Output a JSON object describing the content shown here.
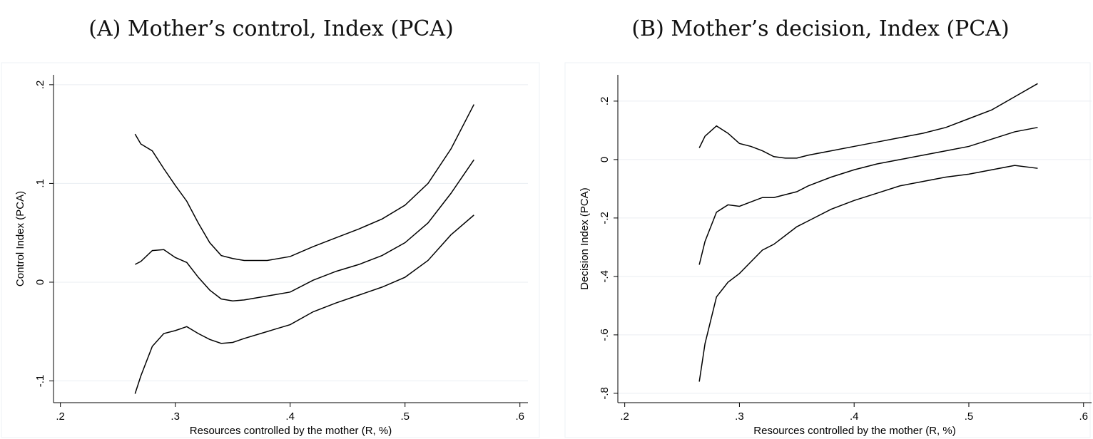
{
  "chart_data": [
    {
      "type": "line",
      "title": "(A) Mother’s control, Index (PCA)",
      "x_label": "Resources controlled by the mother (R, %)",
      "y_label": "Control Index (PCA)",
      "x": [
        0.265,
        0.27,
        0.28,
        0.29,
        0.3,
        0.31,
        0.32,
        0.33,
        0.34,
        0.35,
        0.36,
        0.38,
        0.4,
        0.42,
        0.44,
        0.46,
        0.48,
        0.5,
        0.52,
        0.54,
        0.56
      ],
      "series": [
        {
          "color": "#000000",
          "values": [
            0.15,
            0.14,
            0.133,
            0.115,
            0.098,
            0.082,
            0.06,
            0.04,
            0.027,
            0.024,
            0.022,
            0.022,
            0.026,
            0.036,
            0.045,
            0.054,
            0.064,
            0.078,
            0.1,
            0.135,
            0.18
          ]
        },
        {
          "color": "#000000",
          "values": [
            0.018,
            0.021,
            0.032,
            0.033,
            0.025,
            0.02,
            0.005,
            -0.008,
            -0.017,
            -0.019,
            -0.018,
            -0.014,
            -0.01,
            0.002,
            0.011,
            0.018,
            0.027,
            0.04,
            0.06,
            0.09,
            0.124
          ]
        },
        {
          "color": "#000000",
          "values": [
            -0.113,
            -0.095,
            -0.065,
            -0.052,
            -0.049,
            -0.045,
            -0.052,
            -0.058,
            -0.062,
            -0.061,
            -0.057,
            -0.05,
            -0.043,
            -0.03,
            -0.021,
            -0.013,
            -0.005,
            0.005,
            0.022,
            0.048,
            0.068
          ]
        }
      ],
      "xlim": [
        0.194,
        0.607
      ],
      "ylim": [
        -0.122,
        0.21
      ],
      "xticks": [
        {
          "value": 0.2,
          "label": ".2"
        },
        {
          "value": 0.3,
          "label": ".3"
        },
        {
          "value": 0.4,
          "label": ".4"
        },
        {
          "value": 0.5,
          "label": ".5"
        },
        {
          "value": 0.6,
          "label": ".6"
        }
      ],
      "yticks": [
        {
          "value": -0.1,
          "label": "-.1"
        },
        0,
        {
          "value": 0.1,
          "label": ".1"
        },
        {
          "value": 0.2,
          "label": ".2"
        }
      ],
      "grid": true
    },
    {
      "type": "line",
      "title": "(B) Mother’s decision, Index (PCA)",
      "x_label": "Resources controlled by the mother (R, %)",
      "y_label": "Decision Index (PCA)",
      "x": [
        0.265,
        0.27,
        0.28,
        0.29,
        0.3,
        0.31,
        0.32,
        0.33,
        0.34,
        0.35,
        0.36,
        0.38,
        0.4,
        0.42,
        0.44,
        0.46,
        0.48,
        0.5,
        0.52,
        0.54,
        0.56
      ],
      "series": [
        {
          "color": "#000000",
          "values": [
            0.04,
            0.08,
            0.115,
            0.09,
            0.055,
            0.045,
            0.03,
            0.01,
            0.005,
            0.005,
            0.015,
            0.03,
            0.045,
            0.06,
            0.075,
            0.09,
            0.11,
            0.14,
            0.17,
            0.215,
            0.26
          ]
        },
        {
          "color": "#000000",
          "values": [
            -0.36,
            -0.28,
            -0.18,
            -0.155,
            -0.16,
            -0.145,
            -0.13,
            -0.13,
            -0.12,
            -0.11,
            -0.09,
            -0.06,
            -0.035,
            -0.015,
            0.0,
            0.015,
            0.03,
            0.045,
            0.07,
            0.095,
            0.11
          ]
        },
        {
          "color": "#000000",
          "values": [
            -0.76,
            -0.63,
            -0.47,
            -0.42,
            -0.39,
            -0.35,
            -0.31,
            -0.29,
            -0.26,
            -0.23,
            -0.21,
            -0.17,
            -0.14,
            -0.115,
            -0.09,
            -0.075,
            -0.06,
            -0.05,
            -0.035,
            -0.02,
            -0.03
          ]
        }
      ],
      "xlim": [
        0.194,
        0.607
      ],
      "ylim": [
        -0.832,
        0.29
      ],
      "xticks": [
        {
          "value": 0.2,
          "label": ".2"
        },
        {
          "value": 0.3,
          "label": ".3"
        },
        {
          "value": 0.4,
          "label": ".4"
        },
        {
          "value": 0.5,
          "label": ".5"
        },
        {
          "value": 0.6,
          "label": ".6"
        }
      ],
      "yticks": [
        {
          "value": -0.8,
          "label": "-.8"
        },
        {
          "value": -0.6,
          "label": "-.6"
        },
        {
          "value": -0.4,
          "label": "-.4"
        },
        {
          "value": -0.2,
          "label": "-.2"
        },
        0,
        {
          "value": 0.2,
          "label": ".2"
        }
      ],
      "grid": true
    }
  ]
}
